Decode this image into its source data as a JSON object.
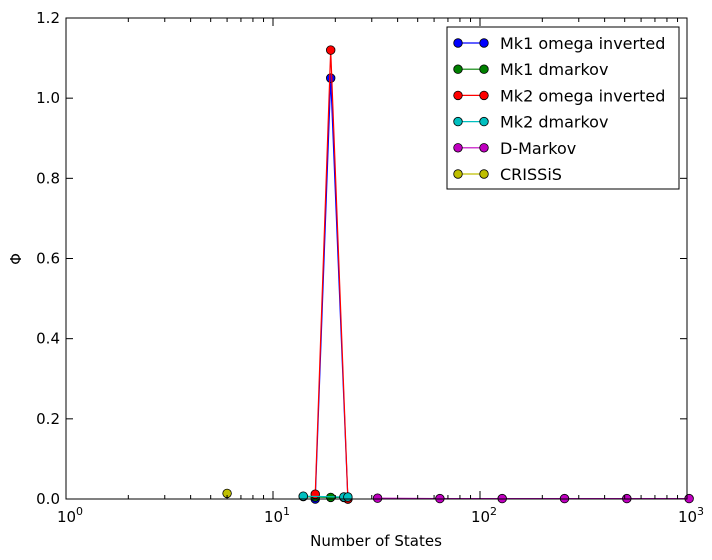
{
  "chart_data": {
    "type": "line",
    "xscale": "log",
    "xlim": [
      1,
      1000
    ],
    "ylim": [
      0,
      1.2
    ],
    "xlabel": "Number of States",
    "ylabel": "Φ",
    "x_ticks": [
      {
        "value": 1,
        "base": "10",
        "exp": "0"
      },
      {
        "value": 10,
        "base": "10",
        "exp": "1"
      },
      {
        "value": 100,
        "base": "10",
        "exp": "2"
      },
      {
        "value": 1000,
        "base": "10",
        "exp": "3"
      }
    ],
    "y_ticks": [
      {
        "value": 0,
        "label": "0.0"
      },
      {
        "value": 0.2,
        "label": "0.2"
      },
      {
        "value": 0.4,
        "label": "0.4"
      },
      {
        "value": 0.6,
        "label": "0.6"
      },
      {
        "value": 0.8,
        "label": "0.8"
      },
      {
        "value": 1.0,
        "label": "1.0"
      },
      {
        "value": 1.2,
        "label": "1.2"
      }
    ],
    "legend_position": "top-right",
    "grid": false,
    "series": [
      {
        "name": "Mk1 omega inverted",
        "color": "#0000ff",
        "x": [
          16,
          19,
          23
        ],
        "y": [
          0.0,
          1.05,
          0.0
        ]
      },
      {
        "name": "Mk1 dmarkov",
        "color": "#008000",
        "x": [
          14,
          16,
          19,
          22,
          23
        ],
        "y": [
          0.006,
          0.005,
          0.004,
          0.004,
          0.004
        ]
      },
      {
        "name": "Mk2 omega inverted",
        "color": "#ff0000",
        "x": [
          16,
          19,
          23
        ],
        "y": [
          0.012,
          1.12,
          0.0
        ]
      },
      {
        "name": "Mk2 dmarkov",
        "color": "#00bfbf",
        "x": [
          14,
          22,
          23
        ],
        "y": [
          0.007,
          0.005,
          0.005
        ]
      },
      {
        "name": "D-Markov",
        "color": "#bf00bf",
        "x": [
          32,
          64,
          128,
          256,
          512,
          1024
        ],
        "y": [
          0.002,
          0.001,
          0.001,
          0.001,
          0.001,
          0.001
        ]
      },
      {
        "name": "CRISSiS",
        "color": "#bfbf00",
        "x": [
          6
        ],
        "y": [
          0.014
        ]
      }
    ]
  }
}
